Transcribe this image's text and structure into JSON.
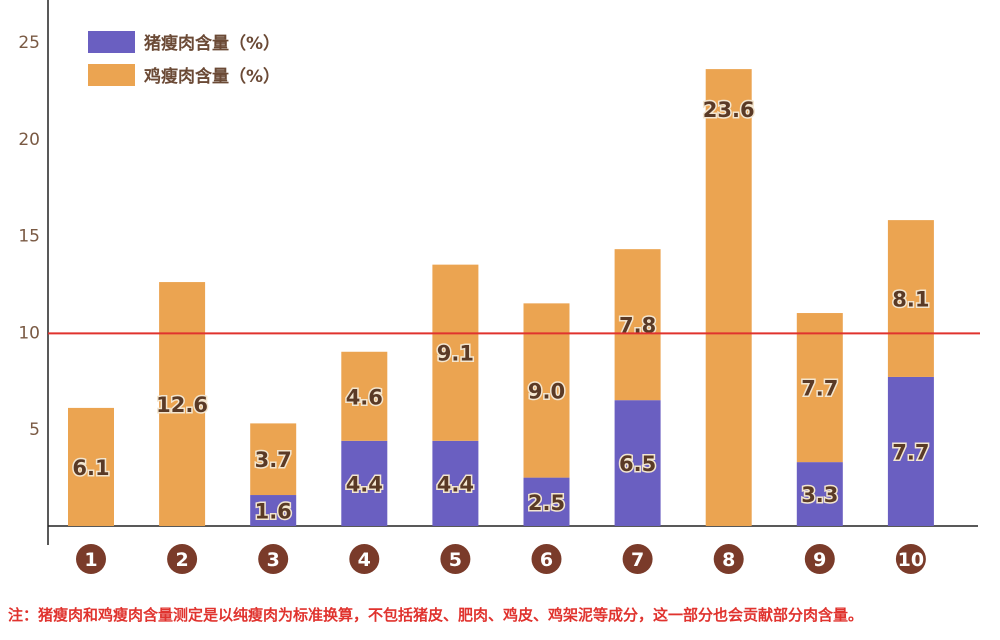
{
  "chart_data": {
    "type": "bar",
    "stacked": true,
    "categories": [
      "1",
      "2",
      "3",
      "4",
      "5",
      "6",
      "7",
      "8",
      "9",
      "10"
    ],
    "series": [
      {
        "name": "猪瘦肉含量（%）",
        "color": "#6a5fc1",
        "values": [
          0,
          0,
          1.6,
          4.4,
          4.4,
          2.5,
          6.5,
          0,
          3.3,
          7.7
        ]
      },
      {
        "name": "鸡瘦肉含量（%）",
        "color": "#eba451",
        "values": [
          6.1,
          12.6,
          3.7,
          4.6,
          9.1,
          9.0,
          7.8,
          23.6,
          7.7,
          8.1
        ]
      }
    ],
    "yticks": [
      5,
      10,
      15,
      20,
      25
    ],
    "ylim": [
      0,
      25
    ],
    "reference_line": {
      "value": 10,
      "color": "#e0332e"
    },
    "legend_position": "top-left",
    "category_marker_color": "#7a3b2a",
    "grid": false
  },
  "note": "注：猪瘦肉和鸡瘦肉含量测定是以纯瘦肉为标准换算，不包括猪皮、肥肉、鸡皮、鸡架泥等成分，这一部分也会贡献部分肉含量。"
}
